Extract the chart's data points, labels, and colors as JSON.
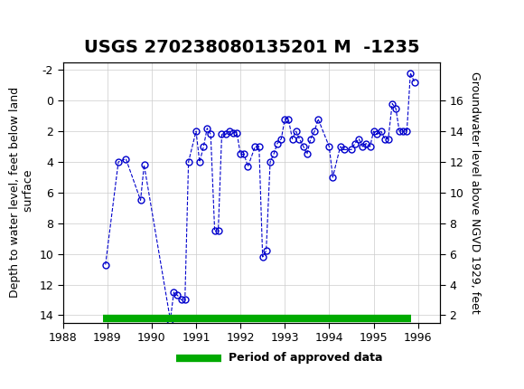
{
  "title": "USGS 270238080135201 M  -1235",
  "xlabel": "",
  "ylabel_left": "Depth to water level, feet below land\n surface",
  "ylabel_right": "Groundwater level above NGVD 1929, feet",
  "xlim": [
    1988.0,
    1996.5
  ],
  "ylim_left": [
    14.5,
    -2.5
  ],
  "ylim_right": [
    0,
    18
  ],
  "xticks": [
    1988,
    1989,
    1990,
    1991,
    1992,
    1993,
    1994,
    1995,
    1996
  ],
  "yticks_left": [
    -2,
    0,
    2,
    4,
    6,
    8,
    10,
    12,
    14
  ],
  "yticks_right": [
    2,
    4,
    6,
    8,
    10,
    12,
    14,
    16
  ],
  "background_color": "#ffffff",
  "header_color": "#1a6b3c",
  "data_color": "#0000cc",
  "approved_bar_color": "#00aa00",
  "title_fontsize": 14,
  "axis_label_fontsize": 9,
  "tick_fontsize": 9,
  "data_x": [
    1988.96,
    1989.25,
    1989.42,
    1989.75,
    1989.83,
    1990.42,
    1990.5,
    1990.58,
    1990.67,
    1990.75,
    1990.83,
    1991.0,
    1991.08,
    1991.17,
    1991.25,
    1991.33,
    1991.42,
    1991.5,
    1991.58,
    1991.67,
    1991.75,
    1991.83,
    1991.92,
    1992.0,
    1992.08,
    1992.17,
    1992.33,
    1992.42,
    1992.5,
    1992.58,
    1992.67,
    1992.75,
    1992.83,
    1992.92,
    1993.0,
    1993.08,
    1993.17,
    1993.25,
    1993.33,
    1993.42,
    1993.5,
    1993.58,
    1993.67,
    1993.75,
    1994.0,
    1994.08,
    1994.25,
    1994.33,
    1994.5,
    1994.58,
    1994.67,
    1994.75,
    1994.83,
    1994.92,
    1995.0,
    1995.08,
    1995.17,
    1995.25,
    1995.33,
    1995.42,
    1995.5,
    1995.58,
    1995.67,
    1995.75,
    1995.83,
    1995.92
  ],
  "data_y": [
    10.7,
    4.0,
    3.8,
    6.5,
    4.2,
    14.3,
    12.5,
    12.7,
    13.0,
    13.0,
    4.0,
    2.0,
    4.0,
    3.0,
    1.8,
    2.2,
    8.5,
    8.5,
    2.2,
    2.2,
    2.0,
    2.1,
    2.1,
    3.5,
    3.5,
    4.3,
    3.0,
    3.0,
    10.2,
    9.8,
    4.0,
    3.5,
    2.8,
    2.5,
    1.2,
    1.2,
    2.5,
    2.0,
    2.5,
    3.0,
    3.5,
    2.5,
    2.0,
    1.2,
    3.0,
    5.0,
    3.0,
    3.2,
    3.2,
    2.8,
    2.5,
    3.0,
    2.8,
    3.0,
    2.0,
    2.2,
    2.0,
    2.5,
    2.5,
    0.2,
    0.5,
    2.0,
    2.0,
    2.0,
    -1.8,
    -1.2
  ],
  "approved_bar_xstart": 1988.9,
  "approved_bar_xend": 1995.85,
  "approved_bar_y": 14.2,
  "legend_label": "Period of approved data",
  "usgs_logo_color": "#1a6b3c"
}
